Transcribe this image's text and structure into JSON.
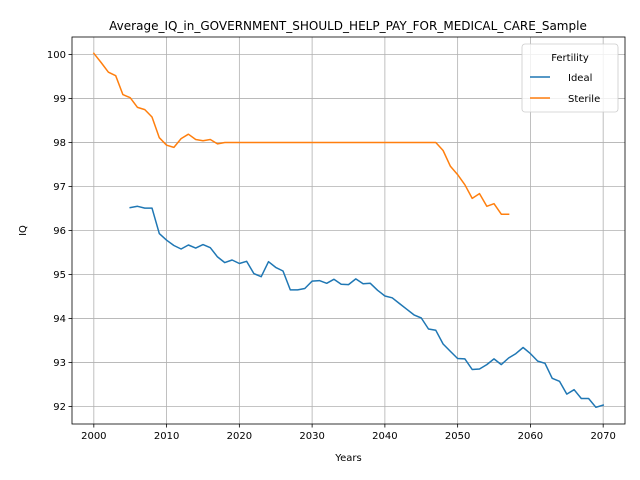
{
  "chart_data": {
    "type": "line",
    "title": "Average_IQ_in_GOVERNMENT_SHOULD_HELP_PAY_FOR_MEDICAL_CARE_Sample",
    "xlabel": "Years",
    "ylabel": "IQ",
    "xlim": [
      1997,
      2073
    ],
    "ylim": [
      91.6,
      100.4
    ],
    "xticks": [
      2000,
      2010,
      2020,
      2030,
      2040,
      2050,
      2060,
      2070
    ],
    "yticks": [
      92,
      93,
      94,
      95,
      96,
      97,
      98,
      99,
      100
    ],
    "grid": true,
    "legend": {
      "title": "Fertility",
      "placement": "top-right"
    },
    "series": [
      {
        "name": "Ideal",
        "color": "#1f77b4",
        "x": [
          2005,
          2006,
          2007,
          2008,
          2009,
          2010,
          2011,
          2012,
          2013,
          2014,
          2015,
          2016,
          2017,
          2018,
          2019,
          2020,
          2021,
          2022,
          2023,
          2024,
          2025,
          2026,
          2027,
          2028,
          2029,
          2030,
          2031,
          2032,
          2033,
          2034,
          2035,
          2036,
          2037,
          2038,
          2039,
          2040,
          2041,
          2042,
          2043,
          2044,
          2045,
          2046,
          2047,
          2048,
          2049,
          2050,
          2051,
          2052,
          2053,
          2054,
          2055,
          2056,
          2057,
          2058,
          2059,
          2060,
          2061,
          2062,
          2063,
          2064,
          2065,
          2066,
          2067,
          2068,
          2069,
          2070
        ],
        "y": [
          96.52,
          96.55,
          96.51,
          96.51,
          95.93,
          95.78,
          95.66,
          95.58,
          95.67,
          95.6,
          95.68,
          95.61,
          95.4,
          95.27,
          95.33,
          95.25,
          95.3,
          95.02,
          94.95,
          95.29,
          95.16,
          95.08,
          94.65,
          94.65,
          94.68,
          94.85,
          94.86,
          94.8,
          94.89,
          94.78,
          94.77,
          94.9,
          94.79,
          94.8,
          94.64,
          94.51,
          94.47,
          94.34,
          94.21,
          94.08,
          94.01,
          93.76,
          93.73,
          93.42,
          93.25,
          93.09,
          93.08,
          92.84,
          92.85,
          92.95,
          93.08,
          92.95,
          93.1,
          93.2,
          93.34,
          93.2,
          93.03,
          92.98,
          92.64,
          92.57,
          92.28,
          92.38,
          92.18,
          92.18,
          91.98,
          92.03
        ]
      },
      {
        "name": "Sterile",
        "color": "#ff7f0e",
        "x": [
          2000,
          2001,
          2002,
          2003,
          2004,
          2005,
          2006,
          2007,
          2008,
          2009,
          2010,
          2011,
          2012,
          2013,
          2014,
          2015,
          2016,
          2017,
          2018,
          2019,
          2020,
          2021,
          2022,
          2023,
          2024,
          2025,
          2026,
          2027,
          2028,
          2029,
          2030,
          2031,
          2032,
          2033,
          2034,
          2035,
          2036,
          2037,
          2038,
          2039,
          2040,
          2041,
          2042,
          2043,
          2044,
          2045,
          2046,
          2047,
          2048,
          2049,
          2050,
          2051,
          2052,
          2053,
          2054,
          2055,
          2056,
          2057
        ],
        "y": [
          100.03,
          99.82,
          99.6,
          99.52,
          99.09,
          99.02,
          98.8,
          98.75,
          98.58,
          98.11,
          97.94,
          97.89,
          98.09,
          98.19,
          98.07,
          98.04,
          98.07,
          97.97,
          98.0,
          98.0,
          98.0,
          98.0,
          98.0,
          98.0,
          98.0,
          98.0,
          98.0,
          98.0,
          98.0,
          98.0,
          98.0,
          98.0,
          98.0,
          98.0,
          98.0,
          98.0,
          98.0,
          98.0,
          98.0,
          98.0,
          98.0,
          98.0,
          98.0,
          98.0,
          98.0,
          98.0,
          98.0,
          98.0,
          97.82,
          97.46,
          97.27,
          97.04,
          96.73,
          96.84,
          96.55,
          96.61,
          96.37,
          96.37
        ]
      }
    ]
  }
}
